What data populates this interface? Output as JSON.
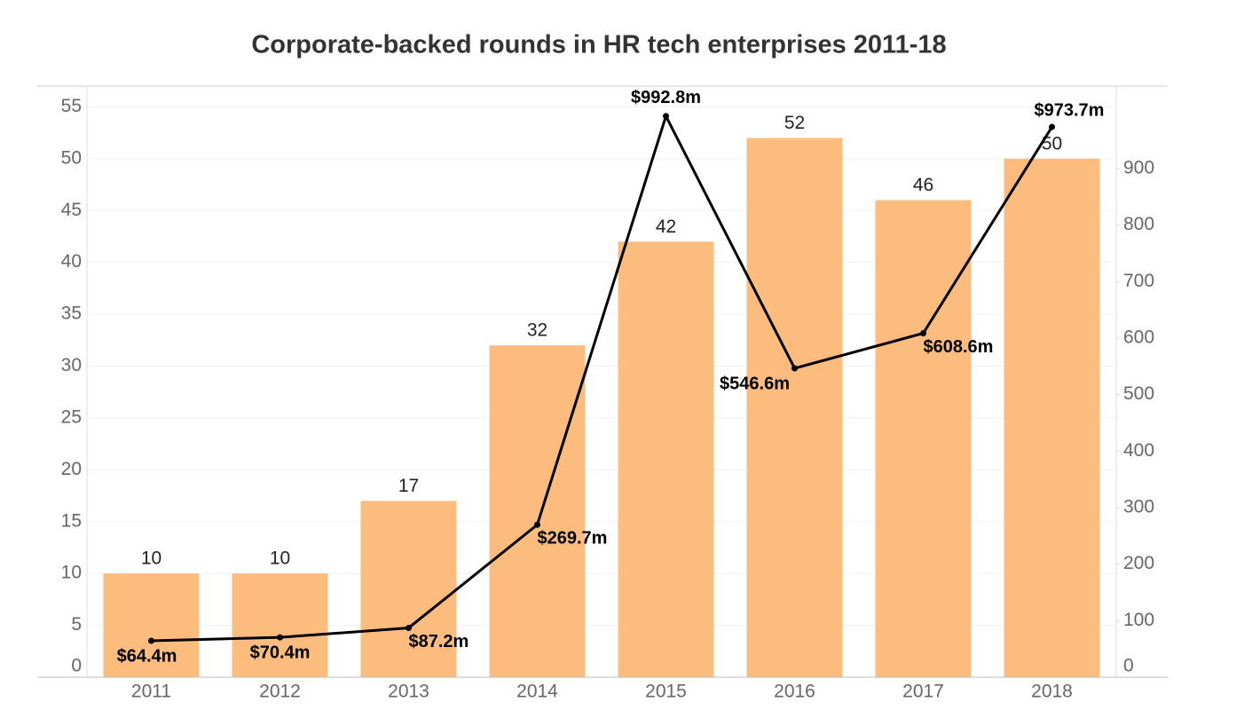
{
  "chart_data": {
    "type": "bar-line",
    "title": "Corporate-backed rounds in HR tech enterprises 2011-18",
    "categories": [
      "2011",
      "2012",
      "2013",
      "2014",
      "2015",
      "2016",
      "2017",
      "2018"
    ],
    "series": [
      {
        "type": "bar",
        "color": "#fbbc7e",
        "values": [
          10,
          10,
          17,
          32,
          42,
          52,
          46,
          50
        ]
      },
      {
        "type": "line",
        "axis": "y2",
        "color": "#000000",
        "values": [
          64.4,
          70.4,
          87.2,
          269.7,
          992.8,
          546.6,
          608.6,
          973.7
        ],
        "value_labels": [
          "$64.4m",
          "$70.4m",
          "$87.2m",
          "$269.7m",
          "$992.8m",
          "$546.6m",
          "$608.6m",
          "$973.7m"
        ]
      }
    ],
    "ylim": [
      0,
      57
    ],
    "yticks": [
      0,
      5,
      10,
      15,
      20,
      25,
      30,
      35,
      40,
      45,
      50,
      55
    ],
    "y2lim": [
      0,
      1046
    ],
    "y2ticks": [
      0,
      100,
      200,
      300,
      400,
      500,
      600,
      700,
      800,
      900
    ],
    "grid": true
  }
}
